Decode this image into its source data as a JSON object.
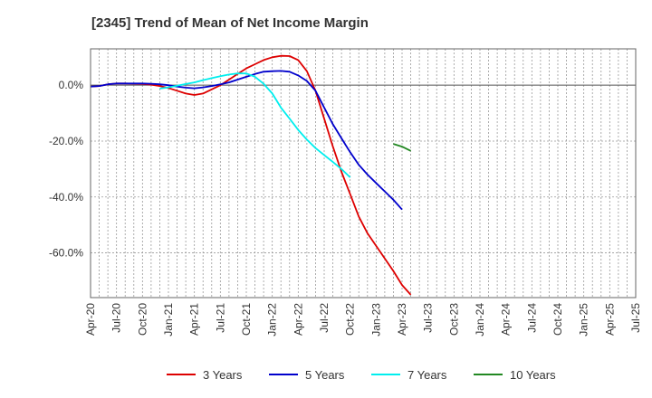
{
  "chart_data": {
    "type": "line",
    "title": "[2345]  Trend of Mean of Net Income Margin",
    "xlabel": "",
    "ylabel": "",
    "x_labels": [
      "Apr-20",
      "Jul-20",
      "Oct-20",
      "Jan-21",
      "Apr-21",
      "Jul-21",
      "Oct-21",
      "Jan-22",
      "Apr-22",
      "Jul-22",
      "Oct-22",
      "Jan-23",
      "Apr-23",
      "Jul-23",
      "Oct-23",
      "Jan-24",
      "Apr-24",
      "Jul-24",
      "Oct-24",
      "Jan-25",
      "Apr-25",
      "Jul-25"
    ],
    "y_ticks": [
      0,
      -20,
      -40,
      -60
    ],
    "y_tick_labels": [
      "0.0%",
      "-20.0%",
      "-40.0%",
      "-60.0%"
    ],
    "ylim": [
      -76,
      13
    ],
    "grid": true,
    "legend_position": "bottom",
    "series": [
      {
        "name": "3 Years",
        "color": "#dd0000",
        "start_index": 0,
        "values": [
          -0.5,
          -0.3,
          0.3,
          0.6,
          0.6,
          0.5,
          0.4,
          0.2,
          -0.3,
          -1.0,
          -2.0,
          -3.0,
          -3.5,
          -3.0,
          -1.5,
          0.0,
          2.0,
          4.0,
          6.0,
          7.5,
          9.0,
          10.0,
          10.5,
          10.4,
          9.0,
          5.0,
          -2.0,
          -12.0,
          -22.0,
          -31.0,
          -39.0,
          -47.0,
          -53.0,
          -57.5,
          -62.0,
          -66.5,
          -71.5,
          -75.0
        ]
      },
      {
        "name": "5 Years",
        "color": "#0000cc",
        "start_index": 0,
        "values": [
          -0.5,
          -0.3,
          0.3,
          0.6,
          0.6,
          0.6,
          0.6,
          0.5,
          0.3,
          0.0,
          -0.5,
          -0.9,
          -1.1,
          -0.8,
          -0.3,
          0.3,
          1.0,
          2.0,
          3.0,
          4.0,
          4.8,
          5.0,
          5.1,
          4.8,
          3.5,
          1.5,
          -2.0,
          -8.0,
          -14.0,
          -19.0,
          -24.0,
          -28.5,
          -32.0,
          -35.0,
          -38.0,
          -41.0,
          -44.5
        ]
      },
      {
        "name": "7 Years",
        "color": "#00eeee",
        "start_index": 8,
        "values": [
          -1.2,
          -0.8,
          -0.2,
          0.4,
          1.0,
          1.8,
          2.5,
          3.2,
          3.8,
          4.2,
          4.2,
          3.0,
          0.5,
          -3.0,
          -8.0,
          -12.0,
          -16.0,
          -19.5,
          -22.5,
          -25.0,
          -27.5,
          -30.0,
          -33.0
        ]
      },
      {
        "name": "10 Years",
        "color": "#228822",
        "start_index": 35,
        "values": [
          -21.0,
          -22.0,
          -23.5
        ]
      }
    ]
  }
}
